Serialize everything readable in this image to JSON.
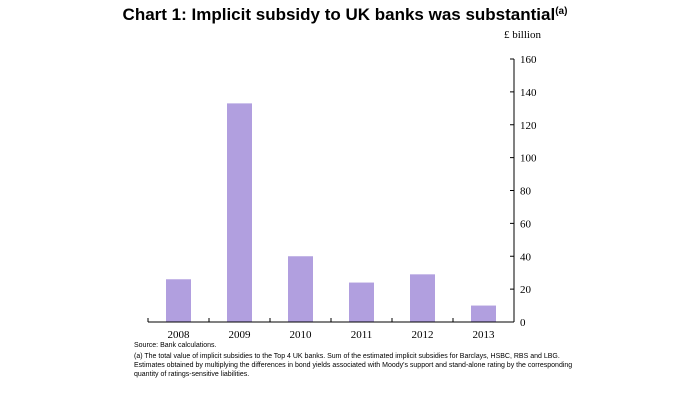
{
  "title": {
    "text": "Chart 1: Implicit subsidy to UK banks was substantial",
    "superscript": "(a)"
  },
  "footnotes": {
    "source": "Source: Bank calculations.",
    "note": "(a) The total value of implicit subsidies to the Top 4 UK banks. Sum of the estimated implicit subsidies for Barclays, HSBC, RBS and LBG. Estimates obtained by multiplying the differences in bond yields associated with Moody's support and stand-alone rating by the corresponding quantity of ratings-sensitive liabilities."
  },
  "chart_data": {
    "type": "bar",
    "title": "Chart 1: Implicit subsidy to UK banks was substantial",
    "unit_label": "£ billion",
    "categories": [
      "2008",
      "2009",
      "2010",
      "2011",
      "2012",
      "2013"
    ],
    "values": [
      26,
      133,
      40,
      24,
      29,
      10
    ],
    "ylim": [
      0,
      160
    ],
    "yticks": [
      0,
      20,
      40,
      60,
      80,
      100,
      120,
      140,
      160
    ],
    "y_axis_position": "right",
    "grid": false,
    "legend": "none",
    "bar_color": "#b19fdf"
  }
}
